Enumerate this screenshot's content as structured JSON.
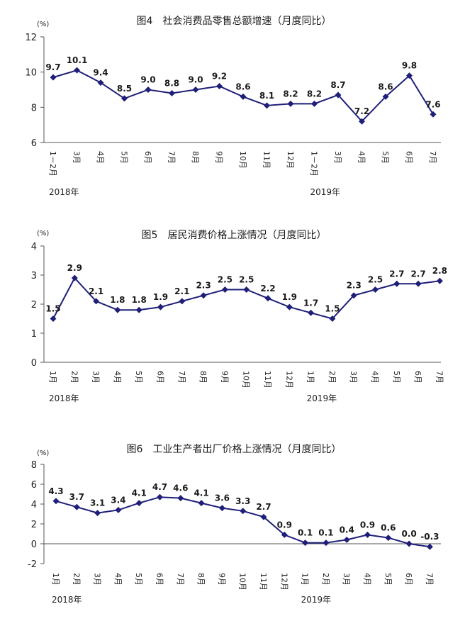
{
  "chart_data": [
    {
      "type": "line",
      "title": "图4　社会消费品零售总额增速（月度同比）",
      "unit": "(%)",
      "categories": [
        "1－2月",
        "3月",
        "4月",
        "5月",
        "6月",
        "7月",
        "8月",
        "9月",
        "10月",
        "11月",
        "12月",
        "1－2月",
        "3月",
        "4月",
        "5月",
        "6月",
        "7月"
      ],
      "values": [
        9.7,
        10.1,
        9.4,
        8.5,
        9.0,
        8.8,
        9.0,
        9.2,
        8.6,
        8.1,
        8.2,
        8.2,
        8.7,
        7.2,
        8.6,
        9.8,
        7.6
      ],
      "labels": [
        "9.7",
        "10.1",
        "9.4",
        "8.5",
        "9.0",
        "8.8",
        "9.0",
        "9.2",
        "8.6",
        "8.1",
        "8.2",
        "8.2",
        "8.7",
        "7.2",
        "8.6",
        "9.8",
        "7.6"
      ],
      "ylim": [
        6,
        12
      ],
      "yticks": [
        "6",
        "8",
        "10",
        "12"
      ],
      "years": [
        {
          "label": "2018年",
          "index": 0
        },
        {
          "label": "2019年",
          "index": 11
        }
      ]
    },
    {
      "type": "line",
      "title": "图5　居民消费价格上涨情况（月度同比）",
      "unit": "(%)",
      "categories": [
        "1月",
        "2月",
        "3月",
        "4月",
        "5月",
        "6月",
        "7月",
        "8月",
        "9月",
        "10月",
        "11月",
        "12月",
        "1月",
        "2月",
        "3月",
        "4月",
        "5月",
        "6月",
        "7月"
      ],
      "values": [
        1.5,
        2.9,
        2.1,
        1.8,
        1.8,
        1.9,
        2.1,
        2.3,
        2.5,
        2.5,
        2.2,
        1.9,
        1.7,
        1.5,
        2.3,
        2.5,
        2.7,
        2.7,
        2.8
      ],
      "labels": [
        "1.5",
        "2.9",
        "2.1",
        "1.8",
        "1.8",
        "1.9",
        "2.1",
        "2.3",
        "2.5",
        "2.5",
        "2.2",
        "1.9",
        "1.7",
        "1.5",
        "2.3",
        "2.5",
        "2.7",
        "2.7",
        "2.8"
      ],
      "ylim": [
        0,
        4
      ],
      "yticks": [
        "0",
        "1",
        "2",
        "3",
        "4"
      ],
      "years": [
        {
          "label": "2018年",
          "index": 0
        },
        {
          "label": "2019年",
          "index": 12
        }
      ]
    },
    {
      "type": "line",
      "title": "图6　工业生产者出厂价格上涨情况（月度同比）",
      "unit": "(%)",
      "categories": [
        "1月",
        "2月",
        "3月",
        "4月",
        "5月",
        "6月",
        "7月",
        "8月",
        "9月",
        "10月",
        "11月",
        "12月",
        "1月",
        "2月",
        "3月",
        "4月",
        "5月",
        "6月",
        "7月"
      ],
      "values": [
        4.3,
        3.7,
        3.1,
        3.4,
        4.1,
        4.7,
        4.6,
        4.1,
        3.6,
        3.3,
        2.7,
        0.9,
        0.1,
        0.1,
        0.4,
        0.9,
        0.6,
        0.0,
        -0.3
      ],
      "labels": [
        "4.3",
        "3.7",
        "3.1",
        "3.4",
        "4.1",
        "4.7",
        "4.6",
        "4.1",
        "3.6",
        "3.3",
        "2.7",
        "0.9",
        "0.1",
        "0.1",
        "0.4",
        "0.9",
        "0.6",
        "0.0",
        "-0.3"
      ],
      "ylim": [
        -2,
        8
      ],
      "yticks": [
        "-2",
        "0",
        "2",
        "4",
        "6",
        "8"
      ],
      "years": [
        {
          "label": "2018年",
          "index": 0
        },
        {
          "label": "2019年",
          "index": 12
        }
      ]
    }
  ]
}
